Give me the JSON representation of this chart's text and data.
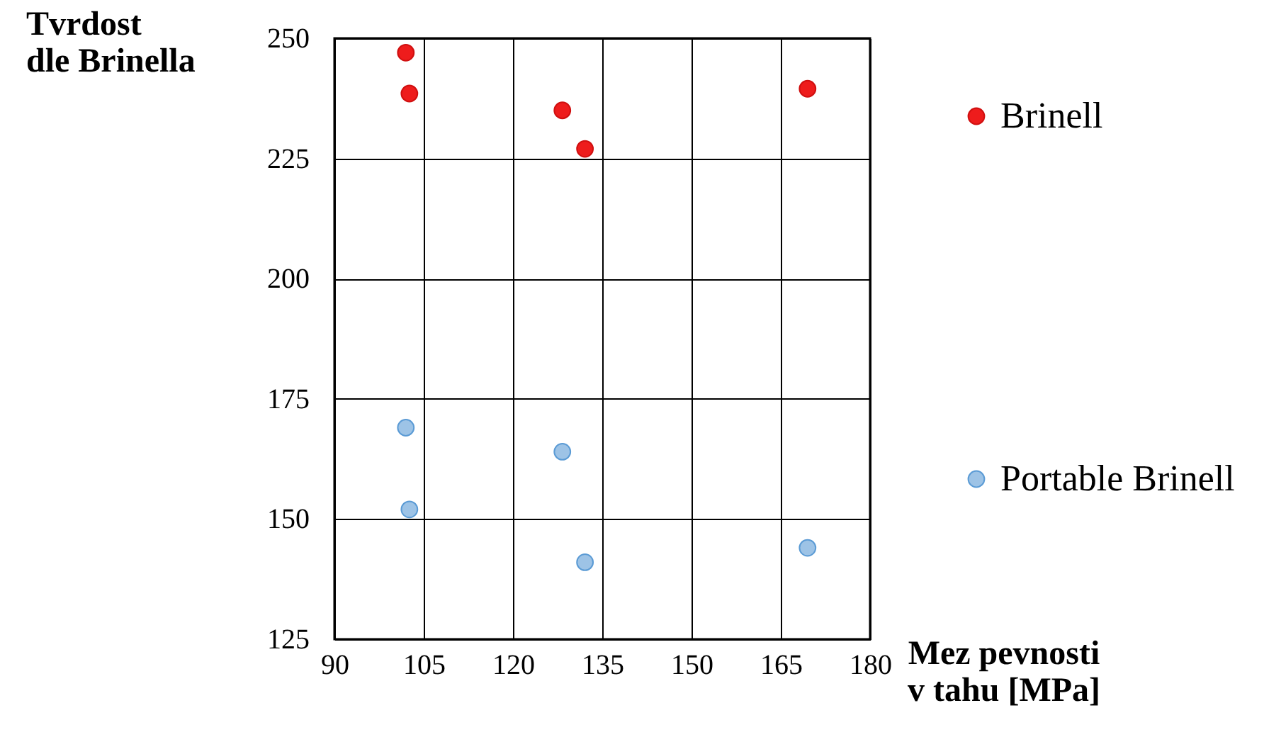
{
  "chart_data": {
    "type": "scatter",
    "xlabel": "Mez pevnosti\nv tahu [MPa]",
    "ylabel": "Tvrdost\ndle Brinella",
    "x": [
      102,
      102.6,
      128.3,
      132.1,
      169.5
    ],
    "series": [
      {
        "name": "Brinell",
        "color": "#ee1c1c",
        "values": [
          247,
          238.5,
          235,
          227,
          239.5
        ]
      },
      {
        "name": "Portable Brinell",
        "color": "#9dc3e6",
        "values": [
          169,
          152,
          164,
          141,
          144
        ]
      }
    ],
    "xlim": [
      90,
      180
    ],
    "xticks": [
      90,
      105,
      120,
      135,
      150,
      165,
      180
    ],
    "ylim": [
      125,
      250
    ],
    "yticks": [
      125,
      150,
      175,
      200,
      225,
      250
    ],
    "grid": true,
    "legend": "right",
    "marker": "circle"
  }
}
